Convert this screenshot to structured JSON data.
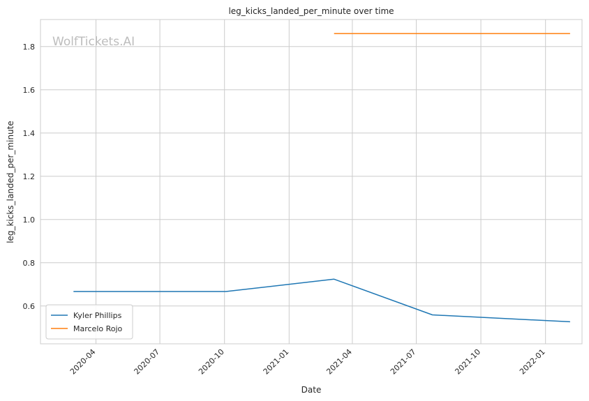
{
  "chart_data": {
    "type": "line",
    "title": "leg_kicks_landed_per_minute over time",
    "xlabel": "Date",
    "ylabel": "leg_kicks_landed_per_minute",
    "watermark": "WolfTickets.AI",
    "xlim": [
      "2020-01-13",
      "2022-02-22"
    ],
    "ylim": [
      0.425,
      1.925
    ],
    "x_ticks": [
      "2020-04-01",
      "2020-07-01",
      "2020-10-01",
      "2021-01-01",
      "2021-04-01",
      "2021-07-01",
      "2021-10-01",
      "2022-01-01"
    ],
    "x_tick_labels": [
      "2020-04",
      "2020-07",
      "2020-10",
      "2021-01",
      "2021-04",
      "2021-07",
      "2021-10",
      "2022-01"
    ],
    "y_ticks": [
      0.6,
      0.8,
      1.0,
      1.2,
      1.4,
      1.6,
      1.8
    ],
    "y_tick_labels": [
      "0.6",
      "0.8",
      "1.0",
      "1.2",
      "1.4",
      "1.6",
      "1.8"
    ],
    "grid": true,
    "legend_position": "lower-left",
    "series": [
      {
        "name": "Kyler Phillips",
        "color": "#1f77b4",
        "points": [
          {
            "x": "2020-02-29",
            "y": 0.667
          },
          {
            "x": "2020-10-03",
            "y": 0.667
          },
          {
            "x": "2021-03-06",
            "y": 0.724
          },
          {
            "x": "2021-07-24",
            "y": 0.559
          },
          {
            "x": "2022-02-05",
            "y": 0.527
          }
        ]
      },
      {
        "name": "Marcelo Rojo",
        "color": "#ff7f0e",
        "points": [
          {
            "x": "2021-03-06",
            "y": 1.86
          },
          {
            "x": "2022-02-05",
            "y": 1.86
          }
        ]
      }
    ]
  }
}
